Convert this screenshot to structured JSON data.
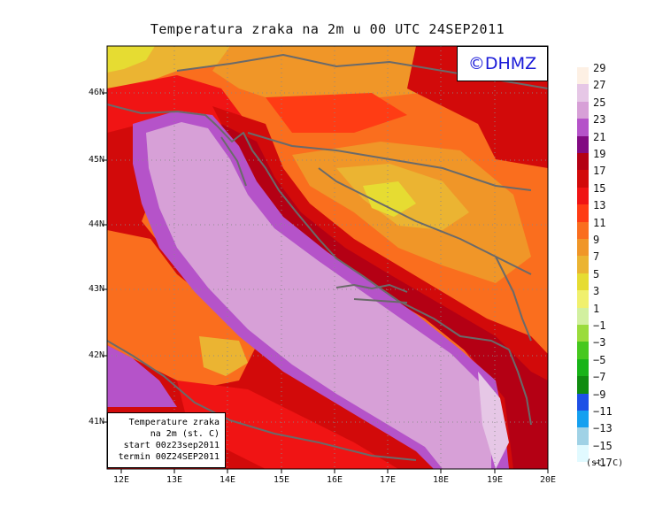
{
  "title": "Temperatura zraka na 2m u 00 UTC 24SEP2011",
  "copyright": "©DHMZ",
  "info_box": {
    "line1": "Temperature zraka",
    "line2": "na 2m (st. C)",
    "line3": "start 00z23sep2011",
    "line4": "termin 00Z24SEP2011"
  },
  "lat_ticks": [
    "46N",
    "45N",
    "44N",
    "43N",
    "42N",
    "41N"
  ],
  "lon_ticks": [
    "12E",
    "13E",
    "14E",
    "15E",
    "16E",
    "17E",
    "18E",
    "19E",
    "20E"
  ],
  "legend": {
    "unit": "(st. C)",
    "entries": [
      {
        "label": "29",
        "color": "#fdf0e4"
      },
      {
        "label": "27",
        "color": "#e6c7e6"
      },
      {
        "label": "25",
        "color": "#d7a0d7"
      },
      {
        "label": "23",
        "color": "#b553c9"
      },
      {
        "label": "21",
        "color": "#820a82"
      },
      {
        "label": "19",
        "color": "#b40014"
      },
      {
        "label": "17",
        "color": "#d20a0a"
      },
      {
        "label": "15",
        "color": "#f01414"
      },
      {
        "label": "13",
        "color": "#ff3c14"
      },
      {
        "label": "11",
        "color": "#fa6e1e"
      },
      {
        "label": "9",
        "color": "#f09628"
      },
      {
        "label": "7",
        "color": "#ebb432"
      },
      {
        "label": "5",
        "color": "#e6dc32"
      },
      {
        "label": "3",
        "color": "#f0f06e"
      },
      {
        "label": "1",
        "color": "#d2f0a0"
      },
      {
        "label": "−1",
        "color": "#9adc3c"
      },
      {
        "label": "−3",
        "color": "#46c81e"
      },
      {
        "label": "−5",
        "color": "#18b418"
      },
      {
        "label": "−7",
        "color": "#108c10"
      },
      {
        "label": "−9",
        "color": "#1e50e6"
      },
      {
        "label": "−11",
        "color": "#14a0f0"
      },
      {
        "label": "−13",
        "color": "#a0d2e6"
      },
      {
        "label": "−15",
        "color": "#e1faff"
      },
      {
        "label": "−17",
        "color": "#ffffff"
      }
    ]
  },
  "colors": {
    "sea_outer": "#d7a0d7",
    "sea_inner": "#e6c7e6",
    "coast_band": "#b553c9",
    "border_line": "#6a6a6a"
  }
}
